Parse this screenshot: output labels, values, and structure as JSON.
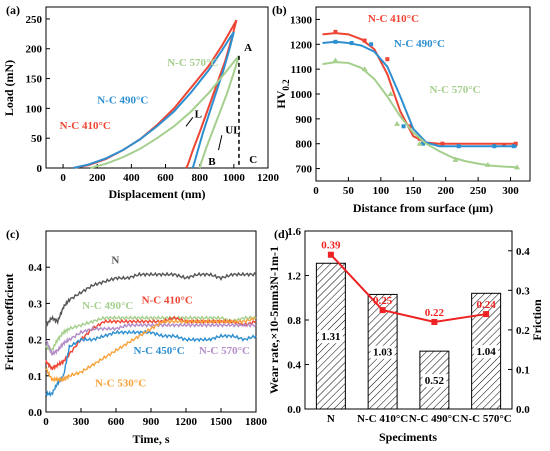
{
  "colors": {
    "red": "#ee4433",
    "blue": "#2e8fd0",
    "green": "#a5cf8d",
    "gray": "#555555",
    "orange": "#f7a23a",
    "purple": "#b48cc8",
    "line_red": "#ee2222"
  },
  "chart_data": [
    {
      "id": "a",
      "panel_label": "(a)",
      "type": "line",
      "xlabel": "Displacement (nm)",
      "ylabel": "Load (mN)",
      "xlim": [
        -100,
        1200
      ],
      "ylim": [
        0,
        270
      ],
      "xticks": [
        0,
        200,
        400,
        600,
        800,
        1000,
        1200
      ],
      "yticks": [
        0,
        50,
        100,
        150,
        200,
        250
      ],
      "series": [
        {
          "name": "N-C 410°C",
          "color": "red",
          "load": [
            [
              60,
              0
            ],
            [
              150,
              5
            ],
            [
              250,
              15
            ],
            [
              350,
              30
            ],
            [
              450,
              48
            ],
            [
              550,
              72
            ],
            [
              650,
              100
            ],
            [
              750,
              135
            ],
            [
              850,
              170
            ],
            [
              930,
              205
            ],
            [
              980,
              230
            ],
            [
              1010,
              245
            ],
            [
              1015,
              248
            ]
          ],
          "unload": [
            [
              1015,
              248
            ],
            [
              990,
              220
            ],
            [
              950,
              180
            ],
            [
              900,
              140
            ],
            [
              850,
              100
            ],
            [
              800,
              60
            ],
            [
              760,
              30
            ],
            [
              730,
              5
            ],
            [
              720,
              0
            ]
          ]
        },
        {
          "name": "N-C 490°C",
          "color": "blue",
          "load": [
            [
              60,
              0
            ],
            [
              150,
              6
            ],
            [
              250,
              16
            ],
            [
              350,
              30
            ],
            [
              450,
              48
            ],
            [
              550,
              70
            ],
            [
              650,
              95
            ],
            [
              750,
              127
            ],
            [
              850,
              163
            ],
            [
              930,
              197
            ],
            [
              985,
              222
            ],
            [
              1000,
              228
            ]
          ],
          "unload": [
            [
              1000,
              228
            ],
            [
              975,
              200
            ],
            [
              940,
              165
            ],
            [
              900,
              130
            ],
            [
              860,
              95
            ],
            [
              820,
              60
            ],
            [
              790,
              30
            ],
            [
              765,
              5
            ],
            [
              758,
              0
            ]
          ]
        },
        {
          "name": "N-C 570°C",
          "color": "green",
          "load": [
            [
              160,
              0
            ],
            [
              250,
              7
            ],
            [
              350,
              18
            ],
            [
              450,
              32
            ],
            [
              550,
              50
            ],
            [
              650,
              70
            ],
            [
              750,
              95
            ],
            [
              850,
              125
            ],
            [
              950,
              160
            ],
            [
              1000,
              178
            ],
            [
              1030,
              188
            ]
          ],
          "unload": [
            [
              1030,
              188
            ],
            [
              1000,
              160
            ],
            [
              960,
              125
            ],
            [
              920,
              95
            ],
            [
              880,
              65
            ],
            [
              840,
              35
            ],
            [
              810,
              10
            ],
            [
              800,
              0
            ]
          ]
        }
      ],
      "annotations": [
        {
          "text": "N-C 570°C",
          "color": "green",
          "x": 610,
          "y": 171
        },
        {
          "text": "N-C 490°C",
          "color": "blue",
          "x": 200,
          "y": 108
        },
        {
          "text": "N-C 410°C",
          "color": "red",
          "x": -20,
          "y": 65
        },
        {
          "text": "L",
          "color": "black",
          "x": 770,
          "y": 85
        },
        {
          "text": "UL",
          "color": "black",
          "x": 950,
          "y": 58
        },
        {
          "text": "A",
          "color": "black",
          "x": 1060,
          "y": 196
        },
        {
          "text": "B",
          "color": "black",
          "x": 850,
          "y": 5
        },
        {
          "text": "C",
          "color": "black",
          "x": 1090,
          "y": 8
        }
      ]
    },
    {
      "id": "b",
      "panel_label": "(b)",
      "type": "line",
      "xlabel": "Distance from surface (μm)",
      "ylabel": "HV0.2",
      "ylabel_main": "HV",
      "ylabel_sub": "0.2",
      "xlim": [
        0,
        330
      ],
      "ylim": [
        650,
        1350
      ],
      "xticks": [
        0,
        50,
        100,
        150,
        200,
        250,
        300
      ],
      "yticks": [
        700,
        800,
        900,
        1000,
        1100,
        1200,
        1300
      ],
      "series": [
        {
          "name": "N-C 410°C",
          "color": "red",
          "x": [
            10,
            30,
            50,
            70,
            90,
            110,
            130,
            150,
            170,
            190,
            210,
            230,
            250,
            270,
            290,
            310
          ],
          "y": [
            1240,
            1245,
            1240,
            1220,
            1180,
            1080,
            930,
            830,
            805,
            800,
            800,
            800,
            800,
            800,
            800,
            800
          ],
          "markers": [
            [
              30,
              1250
            ],
            [
              75,
              1215
            ],
            [
              110,
              1140
            ],
            [
              145,
              870
            ],
            [
              160,
              820
            ],
            [
              195,
              800
            ],
            [
              290,
              795
            ],
            [
              308,
              800
            ]
          ]
        },
        {
          "name": "N-C 490°C",
          "color": "blue",
          "x": [
            10,
            30,
            50,
            70,
            90,
            110,
            130,
            150,
            170,
            190,
            210,
            230,
            250,
            270,
            290,
            310
          ],
          "y": [
            1205,
            1210,
            1205,
            1195,
            1170,
            1110,
            990,
            860,
            805,
            790,
            790,
            790,
            790,
            790,
            790,
            790
          ],
          "markers": [
            [
              30,
              1210
            ],
            [
              55,
              1205
            ],
            [
              85,
              1200
            ],
            [
              135,
              870
            ],
            [
              165,
              800
            ],
            [
              220,
              790
            ],
            [
              275,
              790
            ],
            [
              305,
              790
            ]
          ]
        },
        {
          "name": "N-C 570°C",
          "color": "green",
          "x": [
            10,
            30,
            50,
            70,
            90,
            110,
            130,
            150,
            170,
            190,
            210,
            230,
            250,
            270,
            290,
            310
          ],
          "y": [
            1120,
            1128,
            1125,
            1105,
            1060,
            990,
            910,
            845,
            800,
            770,
            745,
            730,
            720,
            712,
            708,
            705
          ],
          "markers": [
            [
              30,
              1135
            ],
            [
              75,
              1100
            ],
            [
              115,
              1000
            ],
            [
              125,
              880
            ],
            [
              160,
              800
            ],
            [
              215,
              735
            ],
            [
              265,
              715
            ],
            [
              310,
              705
            ]
          ]
        }
      ],
      "annotations": [
        {
          "text": "N-C 410°C",
          "color": "red",
          "x": 80,
          "y": 1290
        },
        {
          "text": "N-C 490°C",
          "color": "blue",
          "x": 120,
          "y": 1190
        },
        {
          "text": "N-C 570°C",
          "color": "green",
          "x": 175,
          "y": 1005
        }
      ]
    },
    {
      "id": "c",
      "panel_label": "(c)",
      "type": "line",
      "xlabel": "Time, s",
      "ylabel": "Friction coefficient",
      "xlim": [
        0,
        1800
      ],
      "ylim": [
        0,
        0.5
      ],
      "xticks": [
        0,
        300,
        600,
        900,
        1200,
        1500,
        1800
      ],
      "yticks": [
        0.0,
        0.1,
        0.2,
        0.3,
        0.4
      ],
      "series": [
        {
          "name": "N",
          "color": "gray",
          "x": [
            0,
            50,
            100,
            150,
            200,
            300,
            400,
            500,
            600,
            700,
            800,
            900,
            1000,
            1100,
            1200,
            1300,
            1400,
            1500,
            1600,
            1700,
            1800
          ],
          "y": [
            0.24,
            0.26,
            0.25,
            0.29,
            0.31,
            0.33,
            0.35,
            0.36,
            0.37,
            0.37,
            0.38,
            0.38,
            0.38,
            0.38,
            0.37,
            0.38,
            0.38,
            0.37,
            0.38,
            0.38,
            0.38
          ]
        },
        {
          "name": "N-C 490°C",
          "color": "green",
          "x": [
            0,
            50,
            100,
            150,
            200,
            300,
            400,
            500,
            600,
            700,
            800,
            900,
            1000,
            1100,
            1200,
            1300,
            1400,
            1500,
            1600,
            1700,
            1800
          ],
          "y": [
            0.18,
            0.17,
            0.2,
            0.22,
            0.23,
            0.24,
            0.25,
            0.26,
            0.26,
            0.26,
            0.26,
            0.26,
            0.26,
            0.26,
            0.26,
            0.26,
            0.26,
            0.26,
            0.25,
            0.26,
            0.26
          ]
        },
        {
          "name": "N-C 410°C",
          "color": "red",
          "x": [
            0,
            50,
            100,
            150,
            200,
            300,
            400,
            500,
            600,
            700,
            800,
            900,
            1000,
            1100,
            1200,
            1300,
            1400,
            1500,
            1600,
            1700,
            1800
          ],
          "y": [
            0.14,
            0.12,
            0.13,
            0.14,
            0.16,
            0.2,
            0.23,
            0.25,
            0.25,
            0.25,
            0.25,
            0.25,
            0.25,
            0.26,
            0.25,
            0.25,
            0.25,
            0.25,
            0.25,
            0.24,
            0.25
          ]
        },
        {
          "name": "N-C 450°C",
          "color": "blue",
          "x": [
            0,
            50,
            100,
            150,
            200,
            300,
            400,
            500,
            600,
            700,
            800,
            900,
            1000,
            1100,
            1200,
            1300,
            1400,
            1500,
            1600,
            1700,
            1800
          ],
          "y": [
            0.05,
            0.05,
            0.08,
            0.1,
            0.18,
            0.2,
            0.2,
            0.21,
            0.22,
            0.22,
            0.22,
            0.22,
            0.21,
            0.21,
            0.2,
            0.2,
            0.2,
            0.21,
            0.21,
            0.2,
            0.21
          ]
        },
        {
          "name": "N-C 570°C",
          "color": "purple",
          "x": [
            0,
            50,
            100,
            150,
            200,
            300,
            400,
            500,
            600,
            700,
            800,
            900,
            1000,
            1100,
            1200,
            1300,
            1400,
            1500,
            1600,
            1700,
            1800
          ],
          "y": [
            0.2,
            0.16,
            0.17,
            0.19,
            0.2,
            0.22,
            0.23,
            0.23,
            0.23,
            0.24,
            0.24,
            0.24,
            0.24,
            0.24,
            0.24,
            0.24,
            0.24,
            0.24,
            0.24,
            0.24,
            0.24
          ]
        },
        {
          "name": "N-C 530°C",
          "color": "orange",
          "x": [
            0,
            50,
            100,
            150,
            200,
            300,
            400,
            500,
            600,
            700,
            800,
            900,
            1000,
            1100,
            1200,
            1300,
            1400,
            1500,
            1600,
            1700,
            1800
          ],
          "y": [
            0.12,
            0.09,
            0.09,
            0.09,
            0.1,
            0.11,
            0.13,
            0.15,
            0.17,
            0.19,
            0.21,
            0.23,
            0.25,
            0.25,
            0.25,
            0.25,
            0.25,
            0.25,
            0.25,
            0.25,
            0.26
          ]
        }
      ],
      "annotations": [
        {
          "text": "N",
          "color": "gray",
          "x": 560,
          "y": 0.41
        },
        {
          "text": "N-C 490°C",
          "color": "green",
          "x": 310,
          "y": 0.285
        },
        {
          "text": "N-C 410°C",
          "color": "red",
          "x": 820,
          "y": 0.3
        },
        {
          "text": "N-C 450°C",
          "color": "blue",
          "x": 750,
          "y": 0.16
        },
        {
          "text": "N-C 570°C",
          "color": "purple",
          "x": 1310,
          "y": 0.16
        },
        {
          "text": "N-C 530°C",
          "color": "orange",
          "x": 420,
          "y": 0.07
        }
      ]
    },
    {
      "id": "d",
      "panel_label": "(d)",
      "type": "bar",
      "xlabel": "Speciments",
      "ylabel": "Wear rate,×10-5mm3N-1m-1",
      "ylabel2": "Friction",
      "categories": [
        "N",
        "N-C 410°C",
        "N-C 490°C",
        "N-C 570°C"
      ],
      "values": [
        1.31,
        1.03,
        0.52,
        1.04
      ],
      "bar_labels": [
        "1.31",
        "1.03",
        "0.52",
        "1.04"
      ],
      "friction": [
        0.39,
        0.25,
        0.22,
        0.24
      ],
      "friction_labels": [
        "0.39",
        "0.25",
        "0.22",
        "0.24"
      ],
      "ylim": [
        0,
        1.6
      ],
      "ylim2": [
        0,
        0.45
      ],
      "yticks": [
        0.0,
        0.4,
        0.8,
        1.2,
        1.6
      ],
      "yticks2": [
        0.0,
        0.1,
        0.2,
        0.3,
        0.4
      ]
    }
  ]
}
